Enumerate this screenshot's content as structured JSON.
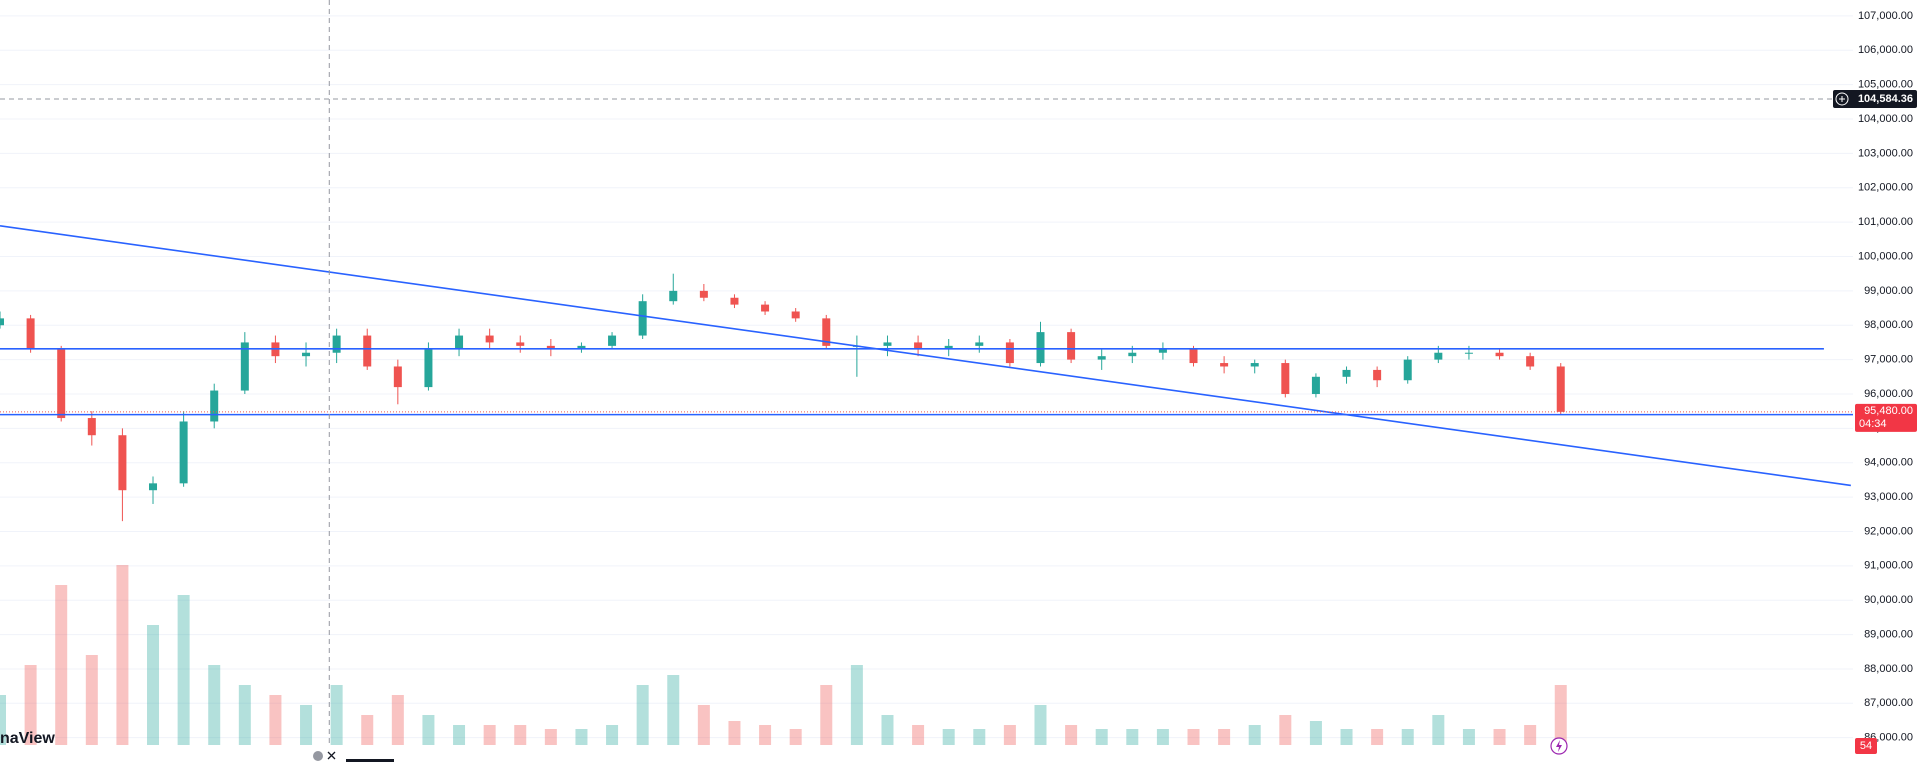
{
  "chart_data": {
    "type": "candlestick",
    "open": [
      98000,
      98200,
      97300,
      95300,
      94800,
      93200,
      93400,
      95200,
      96100,
      97500,
      97100,
      97200,
      97700,
      96800,
      96200,
      97300,
      97700,
      97500,
      97400,
      97300,
      97400,
      97700,
      98700,
      99000,
      98800,
      98600,
      98400,
      98200,
      97400,
      97400,
      97500,
      97300,
      97400,
      97500,
      96900,
      97800,
      97000,
      97100,
      97200,
      97300,
      96900,
      96800,
      96900,
      96000,
      96500,
      96700,
      96400,
      97000,
      97200,
      97200,
      97100,
      96800
    ],
    "high": [
      98400,
      98300,
      97400,
      95500,
      95000,
      93600,
      95500,
      96300,
      97800,
      97700,
      97500,
      97900,
      97900,
      97000,
      97500,
      97900,
      97900,
      97700,
      97600,
      97500,
      97800,
      98900,
      99500,
      99200,
      98900,
      98700,
      98500,
      98300,
      97700,
      97700,
      97700,
      97600,
      97700,
      97600,
      98100,
      97900,
      97300,
      97400,
      97500,
      97400,
      97100,
      97000,
      97000,
      96600,
      96800,
      96800,
      97100,
      97400,
      97400,
      97300,
      97200,
      96900
    ],
    "low": [
      97900,
      97200,
      95200,
      94500,
      92300,
      92800,
      93300,
      95000,
      96000,
      96900,
      96800,
      96900,
      96700,
      95700,
      96100,
      97100,
      97300,
      97200,
      97100,
      97200,
      97300,
      97600,
      98600,
      98700,
      98500,
      98300,
      98100,
      97300,
      96500,
      97100,
      97100,
      97100,
      97200,
      96800,
      96800,
      96900,
      96700,
      96900,
      97000,
      96800,
      96600,
      96600,
      95900,
      95900,
      96300,
      96200,
      96300,
      96900,
      97000,
      97000,
      96700,
      95400
    ],
    "close": [
      98200,
      97300,
      95300,
      94800,
      93200,
      93400,
      95200,
      96100,
      97500,
      97100,
      97200,
      97700,
      96800,
      96200,
      97300,
      97700,
      97500,
      97400,
      97300,
      97400,
      97700,
      98700,
      99000,
      98800,
      98600,
      98400,
      98200,
      97400,
      97400,
      97500,
      97300,
      97400,
      97500,
      96900,
      97800,
      97000,
      97100,
      97200,
      97300,
      96900,
      96800,
      96900,
      96000,
      96500,
      96700,
      96400,
      97000,
      97200,
      97200,
      97100,
      96800,
      95480
    ],
    "volume": [
      25,
      40,
      80,
      45,
      90,
      60,
      75,
      40,
      30,
      25,
      20,
      30,
      15,
      25,
      15,
      10,
      10,
      10,
      8,
      8,
      10,
      30,
      35,
      20,
      12,
      10,
      8,
      30,
      40,
      15,
      10,
      8,
      8,
      10,
      20,
      10,
      8,
      8,
      8,
      8,
      8,
      10,
      15,
      12,
      8,
      8,
      8,
      15,
      8,
      8,
      10,
      30
    ],
    "vlim": [
      0,
      100
    ],
    "up_color": "#26a69a",
    "down_color": "#ef5350",
    "xlim": [
      0,
      60.55
    ],
    "ylim": [
      85787,
      107463
    ],
    "yticks": [
      {
        "value": 107000,
        "label": "107,000.00"
      },
      {
        "value": 106000,
        "label": "106,000.00"
      },
      {
        "value": 105000,
        "label": "105,000.00"
      },
      {
        "value": 104000,
        "label": "104,000.00"
      },
      {
        "value": 103000,
        "label": "103,000.00"
      },
      {
        "value": 102000,
        "label": "102,000.00"
      },
      {
        "value": 101000,
        "label": "101,000.00"
      },
      {
        "value": 100000,
        "label": "100,000.00"
      },
      {
        "value": 99000,
        "label": "99,000.00"
      },
      {
        "value": 98000,
        "label": "98,000.00"
      },
      {
        "value": 97000,
        "label": "97,000.00"
      },
      {
        "value": 96000,
        "label": "96,000.00"
      },
      {
        "value": 95000,
        "label": "95,000.00"
      },
      {
        "value": 94000,
        "label": "94,000.00"
      },
      {
        "value": 93000,
        "label": "93,000.00"
      },
      {
        "value": 92000,
        "label": "92,000.00"
      },
      {
        "value": 91000,
        "label": "91,000.00"
      },
      {
        "value": 90000,
        "label": "90,000.00"
      },
      {
        "value": 89000,
        "label": "89,000.00"
      },
      {
        "value": 88000,
        "label": "88,000.00"
      },
      {
        "value": 87000,
        "label": "87,000.00"
      },
      {
        "value": 86000,
        "label": "86,000.00"
      }
    ],
    "grid": true,
    "lines": [
      {
        "x": [
          0,
          60.48
        ],
        "y": [
          100892,
          93339
        ]
      },
      {
        "x": [
          0,
          59.6
        ],
        "y": [
          97314,
          97314
        ]
      },
      {
        "x": [
          0,
          60.55
        ],
        "y": [
          95399,
          95399
        ]
      }
    ],
    "line_color": "#2962ff",
    "crosshair": {
      "x": 10.76,
      "y": 104584.36,
      "label": "104,584.36"
    },
    "last_price": {
      "value": 95480,
      "label": "95,480.00",
      "countdown": "04:34"
    },
    "watermark": "naView",
    "badge": 54
  }
}
